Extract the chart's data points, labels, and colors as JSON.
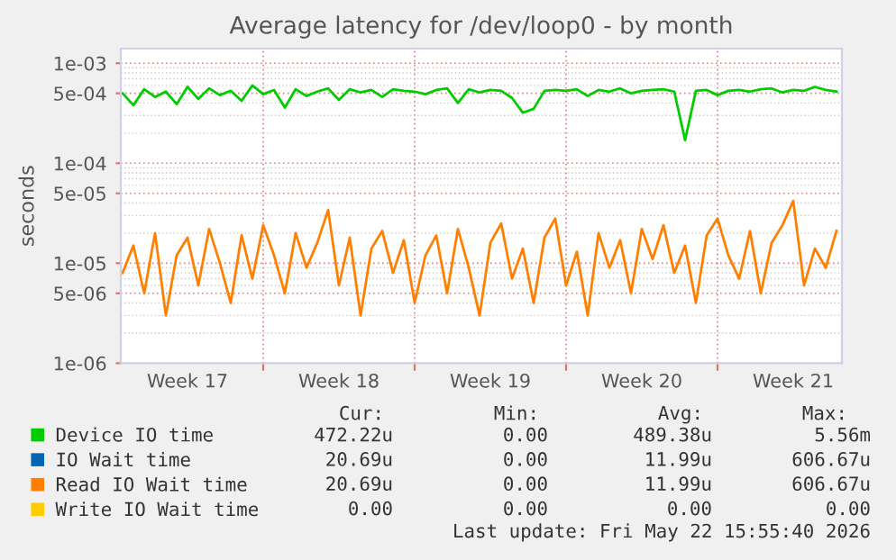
{
  "chart_data": {
    "type": "line",
    "title": "Average latency for /dev/loop0 - by month",
    "ylabel": "seconds",
    "x": [
      "2026-04-20T12:00",
      "2026-04-21T00:00",
      "2026-04-21T12:00",
      "2026-04-22T00:00",
      "2026-04-22T12:00",
      "2026-04-23T00:00",
      "2026-04-23T12:00",
      "2026-04-24T00:00",
      "2026-04-24T12:00",
      "2026-04-25T00:00",
      "2026-04-25T12:00",
      "2026-04-26T00:00",
      "2026-04-26T12:00",
      "2026-04-27T00:00",
      "2026-04-27T12:00",
      "2026-04-28T00:00",
      "2026-04-28T12:00",
      "2026-04-29T00:00",
      "2026-04-29T12:00",
      "2026-04-30T00:00",
      "2026-04-30T12:00",
      "2026-05-01T00:00",
      "2026-05-01T12:00",
      "2026-05-02T00:00",
      "2026-05-02T12:00",
      "2026-05-03T00:00",
      "2026-05-03T12:00",
      "2026-05-04T00:00",
      "2026-05-04T12:00",
      "2026-05-05T00:00",
      "2026-05-05T12:00",
      "2026-05-06T00:00",
      "2026-05-06T12:00",
      "2026-05-07T00:00",
      "2026-05-07T12:00",
      "2026-05-08T00:00",
      "2026-05-08T12:00",
      "2026-05-09T00:00",
      "2026-05-09T12:00",
      "2026-05-10T00:00",
      "2026-05-10T12:00",
      "2026-05-11T00:00",
      "2026-05-11T12:00",
      "2026-05-12T00:00",
      "2026-05-12T12:00",
      "2026-05-13T00:00",
      "2026-05-13T12:00",
      "2026-05-14T00:00",
      "2026-05-14T12:00",
      "2026-05-15T00:00",
      "2026-05-15T12:00",
      "2026-05-16T00:00",
      "2026-05-16T12:00",
      "2026-05-17T00:00",
      "2026-05-17T12:00",
      "2026-05-18T00:00",
      "2026-05-18T12:00",
      "2026-05-19T00:00",
      "2026-05-19T12:00",
      "2026-05-20T00:00",
      "2026-05-20T12:00",
      "2026-05-21T00:00",
      "2026-05-21T12:00",
      "2026-05-22T00:00",
      "2026-05-22T12:00",
      "2026-05-23T00:00",
      "2026-05-23T12:00"
    ],
    "series": [
      {
        "name": "Device IO time",
        "color": "#00cc00",
        "values": [
          0.0005,
          0.00038,
          0.00055,
          0.00046,
          0.00052,
          0.00039,
          0.00058,
          0.00044,
          0.00056,
          0.00048,
          0.00053,
          0.00042,
          0.0006,
          0.00049,
          0.00054,
          0.00036,
          0.00055,
          0.00047,
          0.00052,
          0.00056,
          0.00043,
          0.00055,
          0.00051,
          0.00054,
          0.00046,
          0.00055,
          0.00053,
          0.00052,
          0.00049,
          0.00054,
          0.00056,
          0.0004,
          0.00055,
          0.00051,
          0.00054,
          0.00053,
          0.00045,
          0.00032,
          0.00035,
          0.00053,
          0.00054,
          0.00053,
          0.00055,
          0.00047,
          0.00054,
          0.00052,
          0.00056,
          0.0005,
          0.00053,
          0.00054,
          0.00055,
          0.00052,
          0.00017,
          0.00053,
          0.00054,
          0.00048,
          0.00053,
          0.00054,
          0.00052,
          0.00055,
          0.00056,
          0.00051,
          0.00054,
          0.00053,
          0.00058,
          0.00054,
          0.00052
        ]
      },
      {
        "name": "IO Wait time",
        "color": "#0066b3",
        "values": [
          null,
          null,
          null,
          null,
          null,
          null,
          null,
          null,
          null,
          null,
          null,
          null,
          null,
          null,
          null,
          null,
          null,
          null,
          null,
          null,
          null,
          null,
          null,
          null,
          null,
          null,
          null,
          null,
          null,
          null,
          null,
          null,
          null,
          null,
          null,
          null,
          null,
          null,
          null,
          null,
          null,
          null,
          null,
          null,
          null,
          null,
          null,
          null,
          null,
          null,
          null,
          null,
          null,
          null,
          null,
          null,
          null,
          null,
          null,
          null,
          null,
          null,
          null,
          null,
          null,
          null,
          null
        ]
      },
      {
        "name": "Read IO Wait time",
        "color": "#ff8000",
        "values": [
          8e-06,
          1.5e-05,
          5e-06,
          2e-05,
          3e-06,
          1.2e-05,
          1.8e-05,
          6e-06,
          2.2e-05,
          1e-05,
          4e-06,
          1.9e-05,
          7e-06,
          2.4e-05,
          1.2e-05,
          5e-06,
          2e-05,
          9e-06,
          1.6e-05,
          3.4e-05,
          6e-06,
          1.8e-05,
          3e-06,
          1.4e-05,
          2.1e-05,
          8e-06,
          1.7e-05,
          4e-06,
          1.2e-05,
          1.9e-05,
          5e-06,
          2.2e-05,
          9e-06,
          3e-06,
          1.6e-05,
          2.5e-05,
          7e-06,
          1.4e-05,
          4e-06,
          1.8e-05,
          2.8e-05,
          6e-06,
          1.3e-05,
          3e-06,
          2e-05,
          9e-06,
          1.7e-05,
          5e-06,
          2.2e-05,
          1.1e-05,
          2.4e-05,
          8e-06,
          1.5e-05,
          4e-06,
          1.9e-05,
          2.8e-05,
          1.2e-05,
          7e-06,
          2.1e-05,
          5e-06,
          1.6e-05,
          2.4e-05,
          4.2e-05,
          6e-06,
          1.4e-05,
          9e-06,
          2.1e-05
        ]
      },
      {
        "name": "Write IO Wait time",
        "color": "#ffcc00",
        "values": [
          null,
          null,
          null,
          null,
          null,
          null,
          null,
          null,
          null,
          null,
          null,
          null,
          null,
          null,
          null,
          null,
          null,
          null,
          null,
          null,
          null,
          null,
          null,
          null,
          null,
          null,
          null,
          null,
          null,
          null,
          null,
          null,
          null,
          null,
          null,
          null,
          null,
          null,
          null,
          null,
          null,
          null,
          null,
          null,
          null,
          null,
          null,
          null,
          null,
          null,
          null,
          null,
          null,
          null,
          null,
          null,
          null,
          null,
          null,
          null,
          null,
          null,
          null,
          null,
          null,
          null,
          null
        ]
      }
    ],
    "log": "y",
    "xlim": [
      "2026-04-20T10:00",
      "2026-05-23T18:00"
    ],
    "xticks": [
      {
        "value": "2026-04-23T12:00",
        "label": "Week 17"
      },
      {
        "value": "2026-04-27T00:00",
        "label": null
      },
      {
        "value": "2026-04-30T12:00",
        "label": "Week 18"
      },
      {
        "value": "2026-05-04T00:00",
        "label": null
      },
      {
        "value": "2026-05-07T12:00",
        "label": "Week 19"
      },
      {
        "value": "2026-05-11T00:00",
        "label": null
      },
      {
        "value": "2026-05-14T12:00",
        "label": "Week 20"
      },
      {
        "value": "2026-05-18T00:00",
        "label": null
      },
      {
        "value": "2026-05-21T12:00",
        "label": "Week 21"
      }
    ],
    "ylim": [
      1e-06,
      0.0014
    ],
    "yticks": [
      {
        "value": 1e-06,
        "label": "1e-06"
      },
      {
        "value": 5e-06,
        "label": "5e-06"
      },
      {
        "value": 1e-05,
        "label": "1e-05"
      },
      {
        "value": 5e-05,
        "label": "5e-05"
      },
      {
        "value": 0.0001,
        "label": "1e-04"
      },
      {
        "value": 0.0005,
        "label": "5e-04"
      },
      {
        "value": 0.001,
        "label": "1e-03"
      }
    ],
    "grid": true,
    "legend": "bottom",
    "annotations": [
      "Cur:",
      "Min:",
      "Avg:",
      "Max:",
      "472.22u",
      "0.00",
      "489.38u",
      "5.56m",
      "20.69u",
      "0.00",
      "11.99u",
      "606.67u",
      "20.69u",
      "0.00",
      "11.99u",
      "606.67u",
      "0.00",
      "0.00",
      "0.00",
      "0.00",
      "Last update: Fri May 22 15:55:40 2026"
    ]
  }
}
